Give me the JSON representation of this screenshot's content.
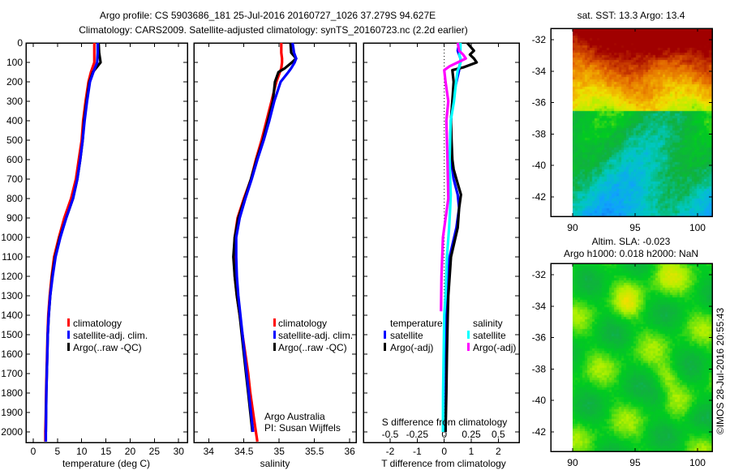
{
  "title": {
    "line1": "Argo profile: CS 5903686_181 25-Jul-2016 20160727_1026 37.279S 94.627E",
    "line2": "Climatology: CARS2009. Satellite-adjusted climatology: synTS_20160723.nc (2.2d earlier)"
  },
  "credit": "©IMOS 28-Jul-2016 20:55:43",
  "chart_data": [
    {
      "id": "temperature",
      "type": "line",
      "xlabel": "temperature (deg C)",
      "ylabel": "depth",
      "xlim": [
        -1.5,
        31.8
      ],
      "ylim": [
        2054,
        0
      ],
      "xticks": [
        0,
        5,
        10,
        15,
        20,
        25,
        30
      ],
      "yticks": [
        0,
        100,
        200,
        300,
        400,
        500,
        600,
        700,
        800,
        900,
        1000,
        1100,
        1200,
        1300,
        1400,
        1500,
        1600,
        1700,
        1800,
        1900,
        2000
      ],
      "legend": {
        "placement": "lower-middle",
        "entries": [
          "climatology",
          "satellite-adj. clim.",
          "Argo(..raw -QC)"
        ]
      },
      "series": [
        {
          "name": "climatology",
          "color": "#ff0000",
          "depth": [
            0,
            50,
            100,
            150,
            200,
            300,
            400,
            500,
            600,
            700,
            800,
            900,
            1000,
            1100,
            1200,
            1300,
            1400,
            1500,
            1600,
            1700,
            1800,
            1900,
            2000,
            2050
          ],
          "values": [
            12.6,
            12.6,
            12.6,
            11.9,
            11.4,
            10.8,
            10.3,
            10.0,
            9.4,
            8.8,
            7.8,
            6.4,
            5.3,
            4.3,
            3.8,
            3.4,
            3.1,
            2.95,
            2.85,
            2.75,
            2.65,
            2.6,
            2.5,
            2.5
          ]
        },
        {
          "name": "Argo(..raw -QC)",
          "color": "#000000",
          "depth": [
            0,
            50,
            100,
            150,
            200,
            300,
            400,
            500,
            600,
            700,
            800,
            900,
            1000,
            1100,
            1200,
            1300,
            1400,
            1500,
            1600,
            1700,
            1800,
            1900,
            2000
          ],
          "values": [
            13.5,
            13.6,
            13.9,
            12.3,
            11.6,
            11.0,
            10.5,
            10.2,
            9.7,
            9.1,
            8.2,
            6.8,
            5.5,
            4.5,
            3.9,
            3.5,
            3.2,
            3.0,
            2.9,
            2.8,
            2.7,
            2.65,
            2.6
          ]
        },
        {
          "name": "satellite-adj. clim.",
          "color": "#0000ff",
          "depth": [
            0,
            50,
            100,
            150,
            200,
            300,
            400,
            500,
            600,
            700,
            800,
            900,
            1000,
            1100,
            1200,
            1300,
            1400,
            1500,
            1600,
            1700,
            1800,
            1900,
            2000,
            2050
          ],
          "values": [
            13.3,
            13.3,
            13.2,
            12.4,
            11.7,
            11.1,
            10.6,
            10.2,
            9.7,
            9.1,
            8.2,
            6.8,
            5.6,
            4.6,
            4.0,
            3.5,
            3.2,
            3.0,
            2.9,
            2.8,
            2.7,
            2.65,
            2.6,
            2.6
          ]
        }
      ]
    },
    {
      "id": "salinity",
      "type": "line",
      "xlabel": "salinity",
      "xlim": [
        33.79,
        36.09
      ],
      "ylim": [
        2054,
        0
      ],
      "xticks": [
        34,
        34.5,
        35,
        35.5,
        36
      ],
      "xticklabels": [
        "34",
        "34.5",
        "35",
        "35.5",
        "36"
      ],
      "legend": {
        "placement": "lower-right",
        "entries": [
          "climatology",
          "satellite-adj. clim.",
          "Argo(..raw -QC)"
        ]
      },
      "annotation": [
        "Argo Australia",
        "PI: Susan Wijffels"
      ],
      "series": [
        {
          "name": "climatology",
          "color": "#ff0000",
          "depth": [
            0,
            50,
            80,
            100,
            130,
            150,
            200,
            300,
            400,
            500,
            600,
            700,
            800,
            900,
            1000,
            1100,
            1200,
            1300,
            1400,
            1500,
            1600,
            1700,
            1800,
            1900,
            2000,
            2050
          ],
          "values": [
            35.03,
            35.03,
            35.04,
            35.04,
            35.03,
            35.01,
            34.96,
            34.89,
            34.82,
            34.75,
            34.67,
            34.6,
            34.5,
            34.41,
            34.37,
            34.36,
            34.37,
            34.4,
            34.44,
            34.48,
            34.52,
            34.56,
            34.59,
            34.63,
            34.67,
            34.69
          ]
        },
        {
          "name": "Argo(..raw -QC)",
          "color": "#000000",
          "depth": [
            0,
            50,
            80,
            100,
            130,
            150,
            200,
            300,
            400,
            500,
            600,
            700,
            800,
            900,
            1000,
            1100,
            1200,
            1300,
            1400,
            1500,
            1600,
            1700,
            1800,
            1900,
            2000
          ],
          "values": [
            35.16,
            35.17,
            35.24,
            35.18,
            35.08,
            34.99,
            34.94,
            34.91,
            34.84,
            34.77,
            34.68,
            34.6,
            34.51,
            34.42,
            34.37,
            34.35,
            34.37,
            34.4,
            34.44,
            34.47,
            34.5,
            34.53,
            34.56,
            34.59,
            34.62
          ]
        },
        {
          "name": "satellite-adj. clim.",
          "color": "#0000ff",
          "depth": [
            0,
            50,
            80,
            100,
            130,
            150,
            200,
            300,
            400,
            500,
            600,
            700,
            800,
            900,
            1000,
            1100,
            1200,
            1300,
            1400,
            1500,
            1600,
            1700,
            1800,
            1900,
            2000
          ],
          "values": [
            35.19,
            35.21,
            35.24,
            35.22,
            35.17,
            35.13,
            35.02,
            34.93,
            34.86,
            34.78,
            34.69,
            34.61,
            34.52,
            34.44,
            34.39,
            34.39,
            34.4,
            34.42,
            34.45,
            34.48,
            34.51,
            34.54,
            34.57,
            34.6,
            34.63
          ]
        }
      ]
    },
    {
      "id": "difference",
      "type": "line",
      "xlabel": "T difference from climatology",
      "x2label": "S difference from climatology",
      "xlim": [
        -2.99,
        2.77
      ],
      "x2lim": [
        -0.7475,
        0.6925
      ],
      "ylim": [
        2054,
        0
      ],
      "xticks": [
        -2,
        -1,
        0,
        1,
        2
      ],
      "x2ticks": [
        -0.5,
        -0.25,
        0,
        0.25,
        0.5
      ],
      "x2ticklabels": [
        "-0.5",
        "-0.25",
        "0",
        "0.25",
        "0.5"
      ],
      "legend": {
        "placement": "lower-middle",
        "headings": [
          "temperature",
          "salinity"
        ],
        "entries": [
          "satellite",
          "Argo(-adj)",
          "satellite",
          "Argo(-adj)"
        ]
      },
      "series": [
        {
          "name": "temperature satellite",
          "axis": "T",
          "color": "#0000ff",
          "depth": [
            0,
            40,
            60,
            80,
            100,
            126,
            140,
            200,
            300,
            400,
            500,
            600,
            650,
            700,
            780,
            850,
            950,
            1100,
            1300,
            1400,
            1600,
            1800,
            2000
          ],
          "values": [
            0.55,
            0.5,
            0.55,
            0.6,
            0.6,
            0.55,
            0.55,
            0.45,
            0.3,
            0.25,
            0.22,
            0.25,
            0.3,
            0.35,
            0.5,
            0.55,
            0.45,
            0.2,
            0.1,
            0.08,
            0.07,
            0.06,
            0.05
          ]
        },
        {
          "name": "temperature Argo(-adj)",
          "axis": "T",
          "color": "#000000",
          "depth": [
            0,
            40,
            60,
            80,
            100,
            126,
            140,
            200,
            300,
            400,
            500,
            600,
            650,
            700,
            780,
            850,
            950,
            1100,
            1300,
            1400,
            1600,
            1800,
            2000
          ],
          "values": [
            0.85,
            1.1,
            0.95,
            1.1,
            1.2,
            0.7,
            0.3,
            0.35,
            0.3,
            0.25,
            0.27,
            0.3,
            0.35,
            0.45,
            0.62,
            0.55,
            0.5,
            0.25,
            0.15,
            0.13,
            0.1,
            0.08,
            0.05
          ]
        },
        {
          "name": "salinity satellite",
          "axis": "S",
          "color": "#00ffff",
          "depth": [
            0,
            40,
            60,
            80,
            100,
            126,
            140,
            200,
            300,
            400,
            500,
            600,
            650,
            700,
            780,
            850,
            950,
            1100,
            1300,
            1400,
            1600,
            1800,
            2000
          ],
          "values": [
            0.15,
            0.15,
            0.14,
            0.15,
            0.15,
            0.14,
            0.125,
            0.11,
            0.09,
            0.06,
            0.055,
            0.05,
            0.05,
            0.055,
            0.06,
            0.055,
            0.045,
            0.025,
            0.012,
            0,
            -0.005,
            -0.01,
            -0.012
          ]
        },
        {
          "name": "salinity Argo(-adj)",
          "axis": "S",
          "color": "#ff00ff",
          "depth": [
            0,
            40,
            60,
            80,
            100,
            120,
            140,
            200,
            300,
            400,
            500,
            600,
            800,
            1000,
            1200,
            1380
          ],
          "values": [
            0.125,
            0.138,
            0.175,
            0.2,
            0.125,
            0.05,
            0,
            0.012,
            0.038,
            0.02,
            0.025,
            0.03,
            0.038,
            -0.012,
            -0.025,
            -0.03
          ]
        }
      ]
    },
    {
      "id": "sst-map",
      "type": "heatmap",
      "title": "sat. SST: 13.3 Argo: 13.4",
      "xlim": [
        88.25,
        101.17
      ],
      "ylim": [
        -43.24,
        -31.28
      ],
      "data_lon_min": 90,
      "xticks": [
        90,
        95,
        100
      ],
      "yticks": [
        -32,
        -34,
        -36,
        -38,
        -40,
        -42
      ],
      "colormap": "jet"
    },
    {
      "id": "sla-map",
      "type": "heatmap",
      "title": [
        "Altim. SLA: -0.023",
        "Argo h1000: 0.018 h2000: NaN"
      ],
      "xlim": [
        88.25,
        101.17
      ],
      "ylim": [
        -43.24,
        -31.28
      ],
      "data_lon_min": 90,
      "xticks": [
        90,
        95,
        100
      ],
      "yticks": [
        -32,
        -34,
        -36,
        -38,
        -40,
        -42
      ],
      "colormap": "jet"
    }
  ]
}
